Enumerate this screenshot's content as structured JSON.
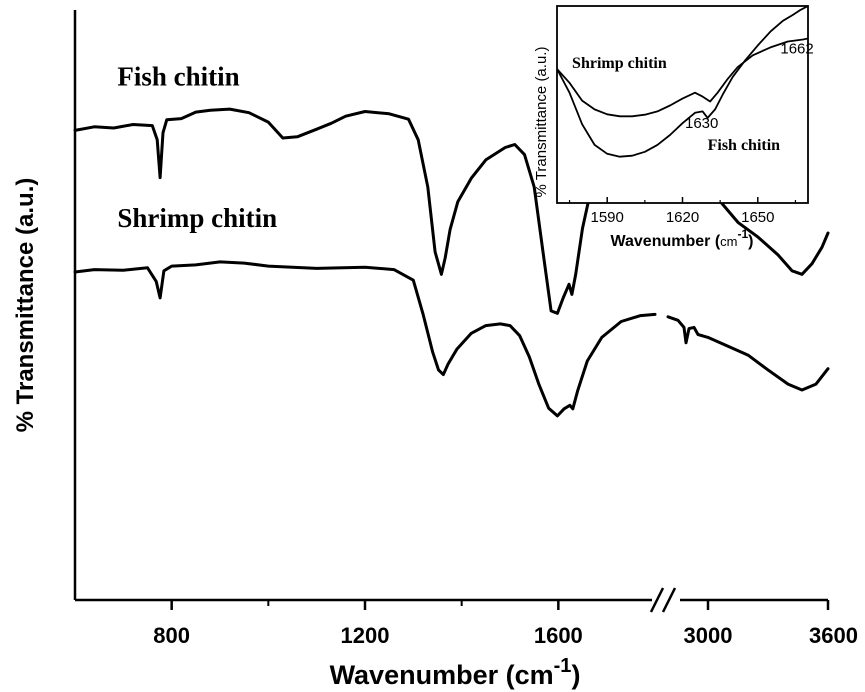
{
  "chart_data": [
    {
      "type": "line",
      "xlabel": "Wavenumber (cm-1)",
      "xlabel_parts": {
        "pre": "Wavenumber (",
        "base": "cm",
        "sup": "-1",
        "post": ")"
      },
      "ylabel": "% Transmittance (a.u.)",
      "axis_break": true,
      "segments": [
        {
          "xlim": [
            600,
            1800
          ],
          "ticks": [
            800,
            1200,
            1600
          ]
        },
        {
          "xlim": [
            2800,
            3600
          ],
          "ticks": [
            3000,
            3600
          ]
        }
      ],
      "yrange": [
        0,
        100
      ],
      "series": [
        {
          "name": "Fish chitin",
          "points": [
            [
              600,
              79.6
            ],
            [
              640,
              80.2
            ],
            [
              680,
              80.0
            ],
            [
              720,
              80.6
            ],
            [
              760,
              80.4
            ],
            [
              770,
              78.0
            ],
            [
              776,
              71.6
            ],
            [
              782,
              79.2
            ],
            [
              790,
              81.4
            ],
            [
              820,
              81.6
            ],
            [
              850,
              82.7
            ],
            [
              880,
              83.0
            ],
            [
              920,
              83.2
            ],
            [
              960,
              82.6
            ],
            [
              1000,
              81.0
            ],
            [
              1030,
              78.3
            ],
            [
              1060,
              78.5
            ],
            [
              1100,
              79.8
            ],
            [
              1130,
              80.8
            ],
            [
              1160,
              82.0
            ],
            [
              1200,
              82.8
            ],
            [
              1250,
              82.4
            ],
            [
              1290,
              81.5
            ],
            [
              1310,
              78.0
            ],
            [
              1330,
              70.0
            ],
            [
              1345,
              59.0
            ],
            [
              1358,
              55.2
            ],
            [
              1366,
              58.0
            ],
            [
              1376,
              62.8
            ],
            [
              1392,
              67.5
            ],
            [
              1420,
              71.5
            ],
            [
              1450,
              74.6
            ],
            [
              1490,
              76.7
            ],
            [
              1510,
              77.2
            ],
            [
              1530,
              75.5
            ],
            [
              1550,
              70.0
            ],
            [
              1570,
              58.0
            ],
            [
              1585,
              49.0
            ],
            [
              1598,
              48.6
            ],
            [
              1610,
              51.2
            ],
            [
              1622,
              53.5
            ],
            [
              1628,
              51.8
            ],
            [
              1636,
              55.2
            ],
            [
              1650,
              63.0
            ],
            [
              1670,
              70.5
            ],
            [
              1700,
              76.5
            ],
            [
              1740,
              80.6
            ],
            [
              1780,
              82.0
            ],
            [
              1800,
              82.4
            ],
            [
              2800,
              82.0
            ],
            [
              2850,
              81.0
            ],
            [
              2870,
              79.0
            ],
            [
              2880,
              78.0
            ],
            [
              2890,
              74.0
            ],
            [
              2905,
              77.5
            ],
            [
              2925,
              78.8
            ],
            [
              2935,
              77.0
            ],
            [
              2948,
              75.2
            ],
            [
              2960,
              74.8
            ],
            [
              3000,
              71.0
            ],
            [
              3050,
              68.0
            ],
            [
              3100,
              66.0
            ],
            [
              3150,
              64.0
            ],
            [
              3250,
              61.5
            ],
            [
              3350,
              58.5
            ],
            [
              3420,
              55.8
            ],
            [
              3470,
              55.2
            ],
            [
              3520,
              57.0
            ],
            [
              3570,
              59.8
            ],
            [
              3600,
              62.2
            ]
          ]
        },
        {
          "name": "Shrimp chitin",
          "points": [
            [
              600,
              55.6
            ],
            [
              640,
              56.0
            ],
            [
              700,
              55.9
            ],
            [
              750,
              56.3
            ],
            [
              768,
              54.0
            ],
            [
              776,
              51.2
            ],
            [
              784,
              55.8
            ],
            [
              800,
              56.6
            ],
            [
              850,
              56.8
            ],
            [
              900,
              57.3
            ],
            [
              950,
              57.1
            ],
            [
              1000,
              56.6
            ],
            [
              1100,
              56.2
            ],
            [
              1200,
              56.4
            ],
            [
              1260,
              56.0
            ],
            [
              1300,
              54.2
            ],
            [
              1320,
              48.5
            ],
            [
              1340,
              42.0
            ],
            [
              1352,
              39.0
            ],
            [
              1362,
              38.2
            ],
            [
              1372,
              40.0
            ],
            [
              1390,
              42.5
            ],
            [
              1420,
              45.2
            ],
            [
              1450,
              46.5
            ],
            [
              1480,
              46.8
            ],
            [
              1500,
              46.5
            ],
            [
              1520,
              44.8
            ],
            [
              1540,
              41.2
            ],
            [
              1560,
              36.5
            ],
            [
              1580,
              32.5
            ],
            [
              1598,
              31.2
            ],
            [
              1612,
              32.4
            ],
            [
              1624,
              33.0
            ],
            [
              1630,
              32.4
            ],
            [
              1640,
              35.5
            ],
            [
              1660,
              40.5
            ],
            [
              1690,
              44.5
            ],
            [
              1730,
              47.2
            ],
            [
              1770,
              48.2
            ],
            [
              1800,
              48.4
            ],
            [
              2800,
              48.0
            ],
            [
              2850,
              47.4
            ],
            [
              2880,
              46.2
            ],
            [
              2890,
              43.6
            ],
            [
              2905,
              46.0
            ],
            [
              2930,
              46.2
            ],
            [
              2950,
              45.0
            ],
            [
              3000,
              44.5
            ],
            [
              3100,
              43.0
            ],
            [
              3200,
              41.5
            ],
            [
              3300,
              39.0
            ],
            [
              3400,
              36.6
            ],
            [
              3470,
              35.6
            ],
            [
              3540,
              36.6
            ],
            [
              3600,
              39.2
            ]
          ]
        }
      ],
      "series_labels": [
        {
          "text": "Fish chitin",
          "x": 700,
          "y": 87.2
        },
        {
          "text": "Shrimp chitin",
          "x": 700,
          "y": 63.2
        }
      ]
    },
    {
      "type": "line",
      "inset": true,
      "xlabel": "Wavenumber (cm-1)",
      "xlabel_parts": {
        "pre": "Wavenumber (",
        "base": "cm",
        "sup": "-1",
        "post": ")"
      },
      "ylabel": "% Transmittance (a.u.)",
      "xlim": [
        1570,
        1670
      ],
      "ylim": [
        0,
        100
      ],
      "xticks": [
        1590,
        1620,
        1650
      ],
      "series": [
        {
          "name": "Shrimp chitin",
          "points": [
            [
              1570,
              68.0
            ],
            [
              1575,
              61.0
            ],
            [
              1580,
              52.0
            ],
            [
              1585,
              47.5
            ],
            [
              1590,
              45.0
            ],
            [
              1595,
              44.0
            ],
            [
              1600,
              44.0
            ],
            [
              1605,
              44.8
            ],
            [
              1610,
              46.5
            ],
            [
              1615,
              49.5
            ],
            [
              1620,
              53.0
            ],
            [
              1625,
              56.0
            ],
            [
              1628,
              54.0
            ],
            [
              1631,
              51.5
            ],
            [
              1634,
              56.0
            ],
            [
              1638,
              63.0
            ],
            [
              1642,
              69.0
            ],
            [
              1648,
              75.0
            ],
            [
              1655,
              79.0
            ],
            [
              1662,
              82.0
            ],
            [
              1668,
              83.0
            ],
            [
              1670,
              83.5
            ]
          ]
        },
        {
          "name": "Fish chitin",
          "points": [
            [
              1570,
              68.0
            ],
            [
              1575,
              56.0
            ],
            [
              1580,
              40.0
            ],
            [
              1585,
              29.5
            ],
            [
              1590,
              25.0
            ],
            [
              1595,
              23.5
            ],
            [
              1600,
              24.0
            ],
            [
              1605,
              26.0
            ],
            [
              1610,
              29.5
            ],
            [
              1615,
              34.5
            ],
            [
              1620,
              40.5
            ],
            [
              1625,
              45.8
            ],
            [
              1628,
              46.5
            ],
            [
              1630,
              43.2
            ],
            [
              1633,
              47.5
            ],
            [
              1636,
              55.0
            ],
            [
              1640,
              64.0
            ],
            [
              1645,
              72.5
            ],
            [
              1650,
              80.0
            ],
            [
              1655,
              87.0
            ],
            [
              1660,
              92.5
            ],
            [
              1664,
              95.5
            ],
            [
              1667,
              98.0
            ],
            [
              1670,
              100.0
            ]
          ]
        }
      ],
      "annotations": [
        {
          "text": "Shrimp chitin",
          "x": 1576,
          "y": 68.5,
          "style": "serif"
        },
        {
          "text": "1662",
          "x": 1659,
          "y": 76.0,
          "style": "sans"
        },
        {
          "text": "1630",
          "x": 1621,
          "y": 38.0,
          "style": "sans"
        },
        {
          "text": "Fish chitin",
          "x": 1630,
          "y": 27.0,
          "style": "serif"
        }
      ]
    }
  ]
}
